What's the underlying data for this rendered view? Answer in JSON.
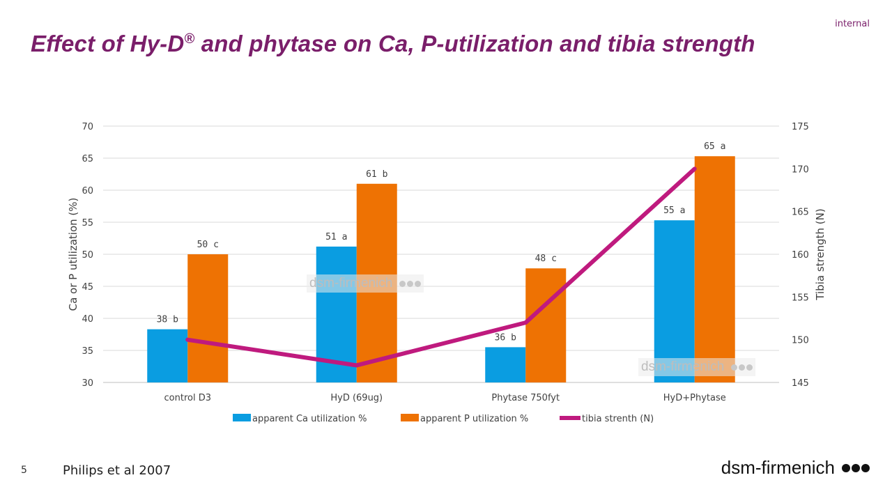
{
  "header": {
    "tag": "internal",
    "title_main": "Effect of Hy-D",
    "title_sup": "®",
    "title_rest": " and phytase on Ca, P-utilization and tibia strength"
  },
  "footer": {
    "page_number": "5",
    "source": "Philips et al 2007",
    "brand": "dsm-firmenich"
  },
  "watermark_text": "dsm-firmenich",
  "chart_data": {
    "type": "bar",
    "categories": [
      "control D3",
      "HyD (69ug)",
      "Phytase 750fyt",
      "HyD+Phytase"
    ],
    "series": [
      {
        "name": "apparent Ca utilization %",
        "type": "bar",
        "axis": "left",
        "color": "#0a9de1",
        "values": [
          38.3,
          51.2,
          35.5,
          55.3
        ],
        "labels": [
          "38 b",
          "51 a",
          "36 b",
          "55 a"
        ]
      },
      {
        "name": "apparent P utilization %",
        "type": "bar",
        "axis": "left",
        "color": "#ee7203",
        "values": [
          50.0,
          61.0,
          47.8,
          65.3
        ],
        "labels": [
          "50 c",
          "61 b",
          "48 c",
          "65 a"
        ]
      },
      {
        "name": "tibia strenth (N)",
        "type": "line",
        "axis": "right",
        "color": "#bf1a7e",
        "values": [
          150,
          147,
          152,
          170
        ]
      }
    ],
    "y_left": {
      "label": "Ca or P utilization (%)",
      "min": 30,
      "max": 70,
      "ticks": [
        30,
        35,
        40,
        45,
        50,
        55,
        60,
        65,
        70
      ]
    },
    "y_right": {
      "label": "Tibia strength (N)",
      "min": 145,
      "max": 175,
      "ticks": [
        145,
        150,
        155,
        160,
        165,
        170,
        175
      ]
    },
    "grid": true,
    "legend_position": "bottom"
  }
}
